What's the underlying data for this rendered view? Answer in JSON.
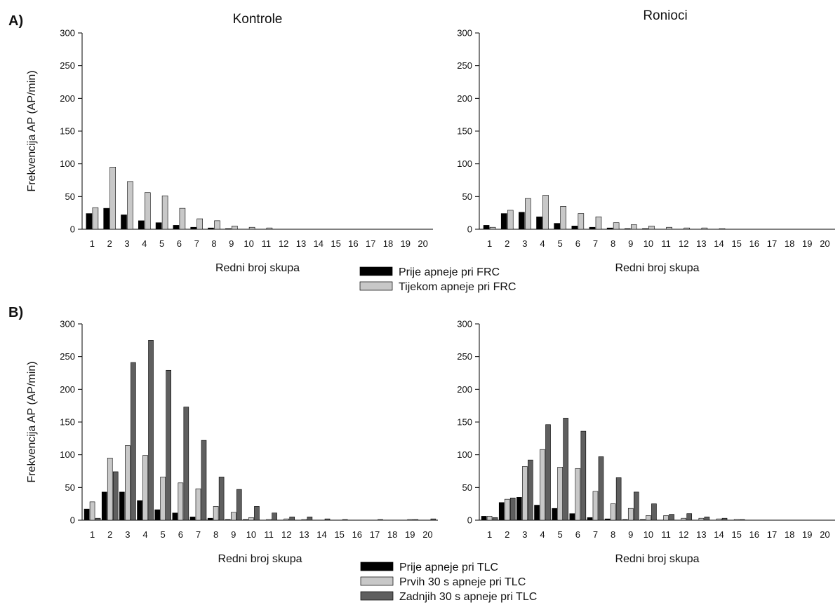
{
  "colors": {
    "prije": "#000000",
    "light": "#c8c8c8",
    "dark": "#5f5f5f",
    "axis": "#000000"
  },
  "panels": {
    "a": {
      "label": "A)"
    },
    "b": {
      "label": "B)"
    }
  },
  "legend_a": [
    {
      "label": "Prije apneje pri FRC",
      "color": "#000000"
    },
    {
      "label": "Tijekom apneje pri FRC",
      "color": "#c8c8c8"
    }
  ],
  "legend_b": [
    {
      "label": "Prije apneje pri TLC",
      "color": "#000000"
    },
    {
      "label": "Prvih 30 s apneje pri TLC",
      "color": "#c8c8c8"
    },
    {
      "label": "Zadnjih 30 s apneje pri TLC",
      "color": "#5f5f5f"
    }
  ],
  "chart_data": [
    {
      "id": "a-kontrole",
      "type": "bar",
      "title": "Kontrole",
      "xlabel": "Redni broj skupa",
      "ylabel": "Frekvencija AP (AP/min)",
      "ylim": [
        0,
        300
      ],
      "yticks": [
        0,
        50,
        100,
        150,
        200,
        250,
        300
      ],
      "categories": [
        "1",
        "2",
        "3",
        "4",
        "5",
        "6",
        "7",
        "8",
        "9",
        "10",
        "11",
        "12",
        "13",
        "14",
        "15",
        "16",
        "17",
        "18",
        "19",
        "20"
      ],
      "series": [
        {
          "name": "Prije apneje pri FRC",
          "color": "#000000",
          "values": [
            24,
            32,
            22,
            13,
            10,
            6,
            3,
            2,
            1,
            0,
            0,
            0,
            0,
            0,
            0,
            0,
            0,
            0,
            0,
            0
          ]
        },
        {
          "name": "Tijekom apneje pri FRC",
          "color": "#c8c8c8",
          "values": [
            33,
            95,
            73,
            56,
            51,
            32,
            16,
            13,
            5,
            3,
            2,
            0,
            0,
            0,
            0,
            0,
            0,
            0,
            0,
            0
          ]
        }
      ]
    },
    {
      "id": "a-ronioci",
      "type": "bar",
      "title": "Ronioci",
      "xlabel": "Redni broj skupa",
      "ylabel": "",
      "ylim": [
        0,
        300
      ],
      "yticks": [
        0,
        50,
        100,
        150,
        200,
        250,
        300
      ],
      "categories": [
        "1",
        "2",
        "3",
        "4",
        "5",
        "6",
        "7",
        "8",
        "9",
        "10",
        "11",
        "12",
        "13",
        "14",
        "15",
        "16",
        "17",
        "18",
        "19",
        "20"
      ],
      "series": [
        {
          "name": "Prije apneje pri FRC",
          "color": "#000000",
          "values": [
            6,
            24,
            26,
            19,
            9,
            5,
            3,
            2,
            1,
            1,
            0,
            0,
            0,
            0,
            0,
            0,
            0,
            0,
            0,
            0
          ]
        },
        {
          "name": "Tijekom apneje pri FRC",
          "color": "#c8c8c8",
          "values": [
            3,
            29,
            47,
            52,
            35,
            24,
            19,
            10,
            7,
            5,
            3,
            2,
            2,
            1,
            0,
            0,
            0,
            0,
            0,
            0
          ]
        }
      ]
    },
    {
      "id": "b-kontrole",
      "type": "bar",
      "title": "",
      "xlabel": "Redni broj skupa",
      "ylabel": "Frekvencija AP (AP/min)",
      "ylim": [
        0,
        300
      ],
      "yticks": [
        0,
        50,
        100,
        150,
        200,
        250,
        300
      ],
      "categories": [
        "1",
        "2",
        "3",
        "4",
        "5",
        "6",
        "7",
        "8",
        "9",
        "10",
        "11",
        "12",
        "13",
        "14",
        "15",
        "16",
        "17",
        "18",
        "19",
        "20"
      ],
      "series": [
        {
          "name": "Prije apneje pri TLC",
          "color": "#000000",
          "values": [
            17,
            43,
            43,
            30,
            16,
            11,
            5,
            3,
            1,
            1,
            0,
            0,
            0,
            0,
            0,
            0,
            0,
            0,
            0,
            0
          ]
        },
        {
          "name": "Prvih 30 s apneje pri TLC",
          "color": "#c8c8c8",
          "values": [
            28,
            95,
            114,
            99,
            66,
            57,
            48,
            21,
            12,
            4,
            1,
            2,
            1,
            0,
            0,
            0,
            0,
            0,
            1,
            0
          ]
        },
        {
          "name": "Zadnjih 30 s apneje pri TLC",
          "color": "#5f5f5f",
          "values": [
            3,
            74,
            241,
            275,
            229,
            173,
            122,
            66,
            47,
            21,
            11,
            5,
            5,
            2,
            1,
            0,
            1,
            0,
            1,
            2
          ]
        }
      ]
    },
    {
      "id": "b-ronioci",
      "type": "bar",
      "title": "",
      "xlabel": "Redni broj skupa",
      "ylabel": "",
      "ylim": [
        0,
        300
      ],
      "yticks": [
        0,
        50,
        100,
        150,
        200,
        250,
        300
      ],
      "categories": [
        "1",
        "2",
        "3",
        "4",
        "5",
        "6",
        "7",
        "8",
        "9",
        "10",
        "11",
        "12",
        "13",
        "14",
        "15",
        "16",
        "17",
        "18",
        "19",
        "20"
      ],
      "series": [
        {
          "name": "Prije apneje pri TLC",
          "color": "#000000",
          "values": [
            6,
            27,
            35,
            23,
            18,
            10,
            4,
            2,
            1,
            1,
            0,
            0,
            0,
            0,
            0,
            0,
            0,
            0,
            0,
            0
          ]
        },
        {
          "name": "Prvih 30 s apneje pri TLC",
          "color": "#c8c8c8",
          "values": [
            6,
            32,
            82,
            108,
            81,
            79,
            44,
            25,
            18,
            7,
            7,
            3,
            3,
            2,
            1,
            0,
            0,
            0,
            0,
            0
          ]
        },
        {
          "name": "Zadnjih 30 s apneje pri TLC",
          "color": "#5f5f5f",
          "values": [
            4,
            34,
            92,
            146,
            156,
            136,
            97,
            65,
            43,
            25,
            9,
            10,
            5,
            3,
            1,
            0,
            0,
            0,
            0,
            0
          ]
        }
      ]
    }
  ]
}
